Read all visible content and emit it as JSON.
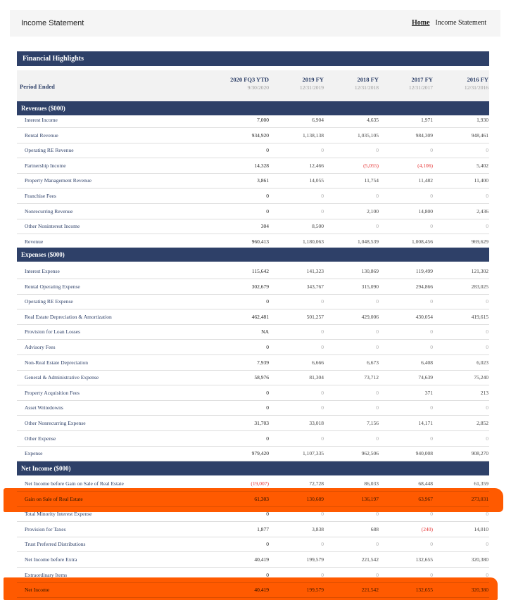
{
  "header": {
    "title": "Income Statement",
    "breadcrumb": {
      "home": "Home",
      "current": "Income Statement"
    }
  },
  "panel_title": "Financial Highlights",
  "columns": {
    "period_label": "Period Ended",
    "periods": [
      {
        "label": "2020 FQ3 YTD",
        "date": "9/30/2020"
      },
      {
        "label": "2019 FY",
        "date": "12/31/2019"
      },
      {
        "label": "2018 FY",
        "date": "12/31/2018"
      },
      {
        "label": "2017 FY",
        "date": "12/31/2017"
      },
      {
        "label": "2016 FY",
        "date": "12/31/2016"
      }
    ]
  },
  "highlight_color": "#ff5a00",
  "sections": [
    {
      "title": "Revenues ($000)",
      "rows": [
        [
          "Interest Income",
          "7,000",
          "6,904",
          "4,635",
          "1,971",
          "1,930"
        ],
        [
          "Rental Revenue",
          "934,920",
          "1,138,138",
          "1,035,105",
          "984,309",
          "948,461"
        ],
        [
          "Operating RE Revenue",
          "0",
          "0",
          "0",
          "0",
          "0"
        ],
        [
          "Partnership Income",
          "14,328",
          "12,466",
          "(5,055)",
          "(4,106)",
          "5,402"
        ],
        [
          "Property Management Revenue",
          "3,861",
          "14,055",
          "11,754",
          "11,482",
          "11,400"
        ],
        [
          "Franchise Fees",
          "0",
          "0",
          "0",
          "0",
          "0"
        ],
        [
          "Nonrecurring Revenue",
          "0",
          "0",
          "2,100",
          "14,800",
          "2,436"
        ],
        [
          "Other Noninterest Income",
          "304",
          "8,500",
          "0",
          "0",
          "0"
        ],
        [
          "Revenue",
          "960,413",
          "1,180,063",
          "1,048,539",
          "1,008,456",
          "969,629"
        ]
      ]
    },
    {
      "title": "Expenses ($000)",
      "rows": [
        [
          "Interest Expense",
          "115,642",
          "141,323",
          "130,869",
          "119,499",
          "121,302"
        ],
        [
          "Rental Operating Expense",
          "302,679",
          "343,767",
          "315,090",
          "294,866",
          "283,025"
        ],
        [
          "Operating RE Expense",
          "0",
          "0",
          "0",
          "0",
          "0"
        ],
        [
          "Real Estate Depreciation & Amortization",
          "462,481",
          "501,257",
          "429,006",
          "430,054",
          "419,615"
        ],
        [
          "Provision for Loan Losses",
          "NA",
          "0",
          "0",
          "0",
          "0"
        ],
        [
          "Advisory Fees",
          "0",
          "0",
          "0",
          "0",
          "0"
        ],
        [
          "Non-Real Estate Depreciation",
          "7,939",
          "6,666",
          "6,673",
          "6,408",
          "6,023"
        ],
        [
          "General & Administrative Expense",
          "58,976",
          "81,304",
          "73,712",
          "74,639",
          "75,240"
        ],
        [
          "Property Acquisition Fees",
          "0",
          "0",
          "0",
          "371",
          "213"
        ],
        [
          "Asset Writedowns",
          "0",
          "0",
          "0",
          "0",
          "0"
        ],
        [
          "Other Nonrecurring Expense",
          "31,703",
          "33,018",
          "7,156",
          "14,171",
          "2,852"
        ],
        [
          "Other Expense",
          "0",
          "0",
          "0",
          "0",
          "0"
        ],
        [
          "Expense",
          "979,420",
          "1,107,335",
          "962,506",
          "940,008",
          "908,270"
        ]
      ]
    },
    {
      "title": "Net Income ($000)",
      "rows": [
        [
          "Net Income before Gain on Sale of Real Estate",
          "(19,007)",
          "72,728",
          "86,033",
          "68,448",
          "61,359"
        ],
        [
          "Gain on Sale of Real Estate",
          "61,303",
          "130,689",
          "136,197",
          "63,967",
          "273,031"
        ],
        [
          "Total Minority Interest Expense",
          "0",
          "0",
          "0",
          "0",
          "0"
        ],
        [
          "Provision for Taxes",
          "1,877",
          "3,838",
          "688",
          "(240)",
          "14,010"
        ],
        [
          "Trust Preferred Distributions",
          "0",
          "0",
          "0",
          "0",
          "0"
        ],
        [
          "Net Income before Extra",
          "40,419",
          "199,579",
          "221,542",
          "132,655",
          "320,380"
        ],
        [
          "Extraordinary Items",
          "0",
          "0",
          "0",
          "0",
          "0"
        ],
        [
          "Net Income",
          "40,419",
          "199,579",
          "221,542",
          "132,655",
          "320,380"
        ]
      ]
    }
  ]
}
